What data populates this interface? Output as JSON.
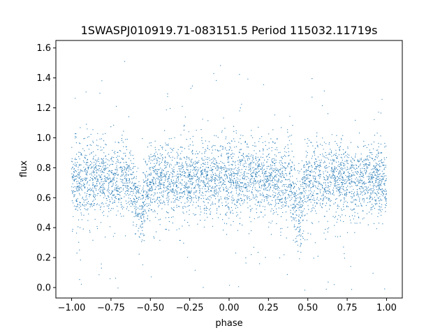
{
  "chart_data": {
    "type": "scatter",
    "title": "1SWASPJ010919.71-083151.5 Period 115032.11719s",
    "xlabel": "phase",
    "ylabel": "flux",
    "xlim": [
      -1.1,
      1.1
    ],
    "ylim": [
      -0.07,
      1.65
    ],
    "xticks": [
      -1.0,
      -0.75,
      -0.5,
      -0.25,
      0.0,
      0.25,
      0.5,
      0.75,
      1.0
    ],
    "xtick_labels": [
      "−1.00",
      "−0.75",
      "−0.50",
      "−0.25",
      "0.00",
      "0.25",
      "0.50",
      "0.75",
      "1.00"
    ],
    "yticks": [
      0.0,
      0.2,
      0.4,
      0.6,
      0.8,
      1.0,
      1.2,
      1.4,
      1.6
    ],
    "ytick_labels": [
      "0.0",
      "0.2",
      "0.4",
      "0.6",
      "0.8",
      "1.0",
      "1.2",
      "1.4",
      "1.6"
    ],
    "grid": false,
    "point_color": "#1f77b4",
    "series": [
      {
        "phase_range": [
          -1.0,
          1.0
        ],
        "baseline_flux": 0.72,
        "scatter_sd": 0.12,
        "eclipses": [
          {
            "phase": -0.56,
            "depth_flux": 0.5
          },
          {
            "phase": 0.44,
            "depth_flux": 0.5
          }
        ]
      }
    ]
  }
}
